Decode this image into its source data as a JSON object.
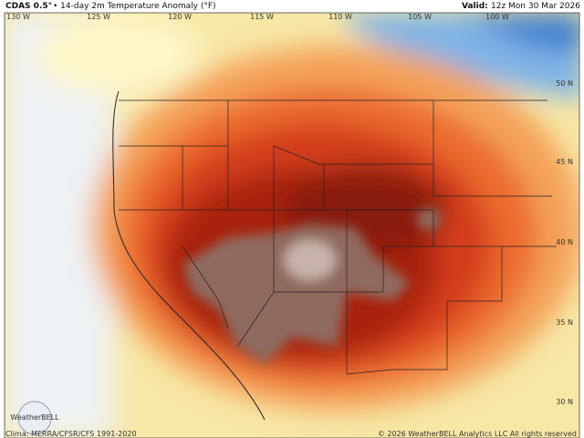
{
  "header": {
    "model": "CDAS 0.5°",
    "title": "• 14-day 2m Temperature Anomaly (°F)",
    "valid_label": "Valid:",
    "valid_time": "12z Mon 30 Mar 2026"
  },
  "longitudes": [
    "130 W",
    "125 W",
    "120 W",
    "115 W",
    "110 W",
    "105 W",
    "100 W"
  ],
  "latitudes": [
    "50 N",
    "45 N",
    "40 N",
    "35 N",
    "30 N"
  ],
  "logo": "WeatherBELL",
  "footer": {
    "climatology": "Clima: MERRA/CFSR/CFS 1991-2020",
    "copyright": "© 2026 WeatherBELL Analytics LLC All rights reserved"
  }
}
